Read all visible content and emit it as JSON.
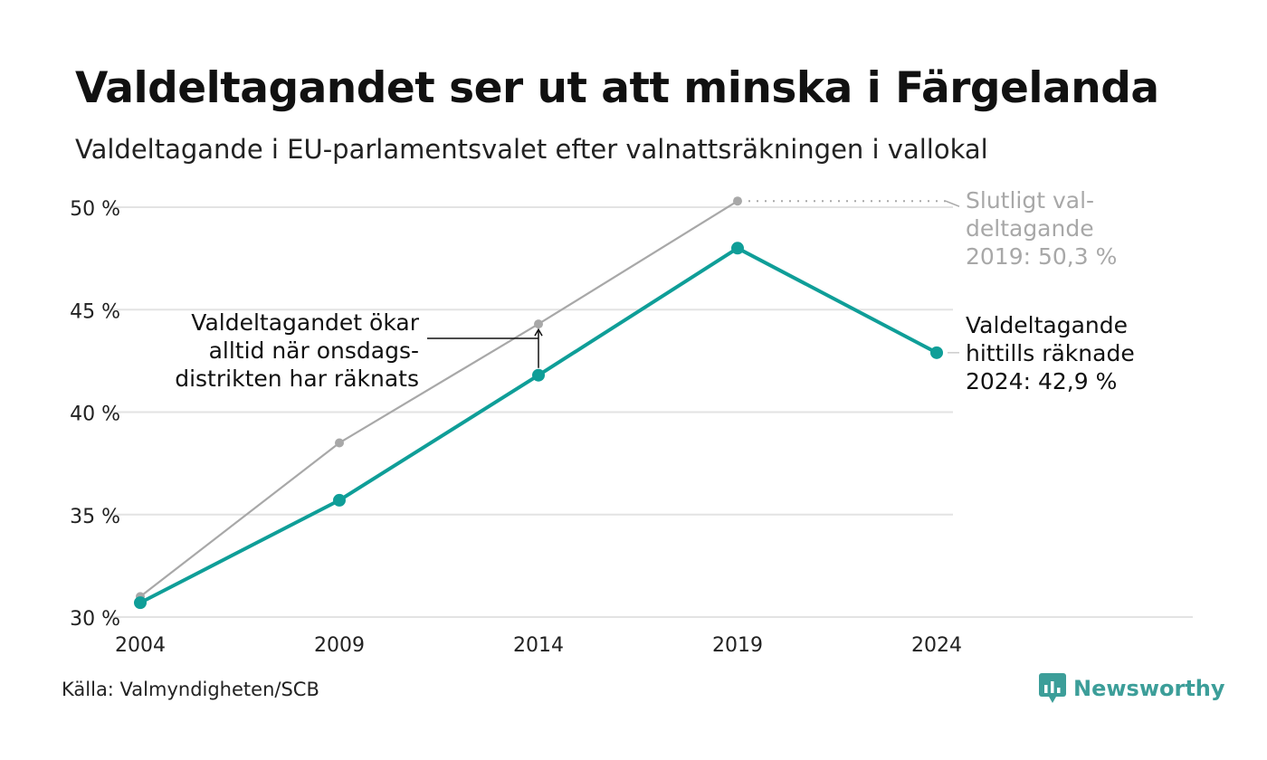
{
  "title": "Valdeltagandet ser ut att minska i Färgelanda",
  "subtitle": "Valdeltagande i EU-parlamentsvalet efter valnattsräkningen i vallokal",
  "source": "Källa: Valmyndigheten/SCB",
  "brand": {
    "name": "Newsworthy",
    "icon": "newsworthy-logo-icon",
    "color": "#3c9e99"
  },
  "chart_data": {
    "type": "line",
    "x": [
      "2004",
      "2009",
      "2014",
      "2019",
      "2024"
    ],
    "ylim": [
      30,
      50
    ],
    "yticks": [
      30,
      35,
      40,
      45,
      50
    ],
    "ytick_labels": [
      "30 %",
      "35 %",
      "40 %",
      "45 %",
      "50 %"
    ],
    "grid": true,
    "series": [
      {
        "key": "final",
        "values": [
          31.0,
          38.5,
          44.3,
          50.3,
          null
        ],
        "color": "#a8a8a8"
      },
      {
        "key": "election_night",
        "values": [
          30.7,
          35.7,
          41.8,
          48.0,
          42.9
        ],
        "color": "#0f9e98"
      }
    ],
    "annotations": {
      "final_2019": [
        "Slutligt val-",
        "deltagande",
        "2019: 50,3 %"
      ],
      "counted_2024": [
        "Valdeltagande",
        "hittills räknade",
        "2024: 42,9 %"
      ],
      "wednesday": [
        "Valdeltagandet ökar",
        "alltid när onsdags-",
        "distrikten har räknats"
      ]
    }
  }
}
